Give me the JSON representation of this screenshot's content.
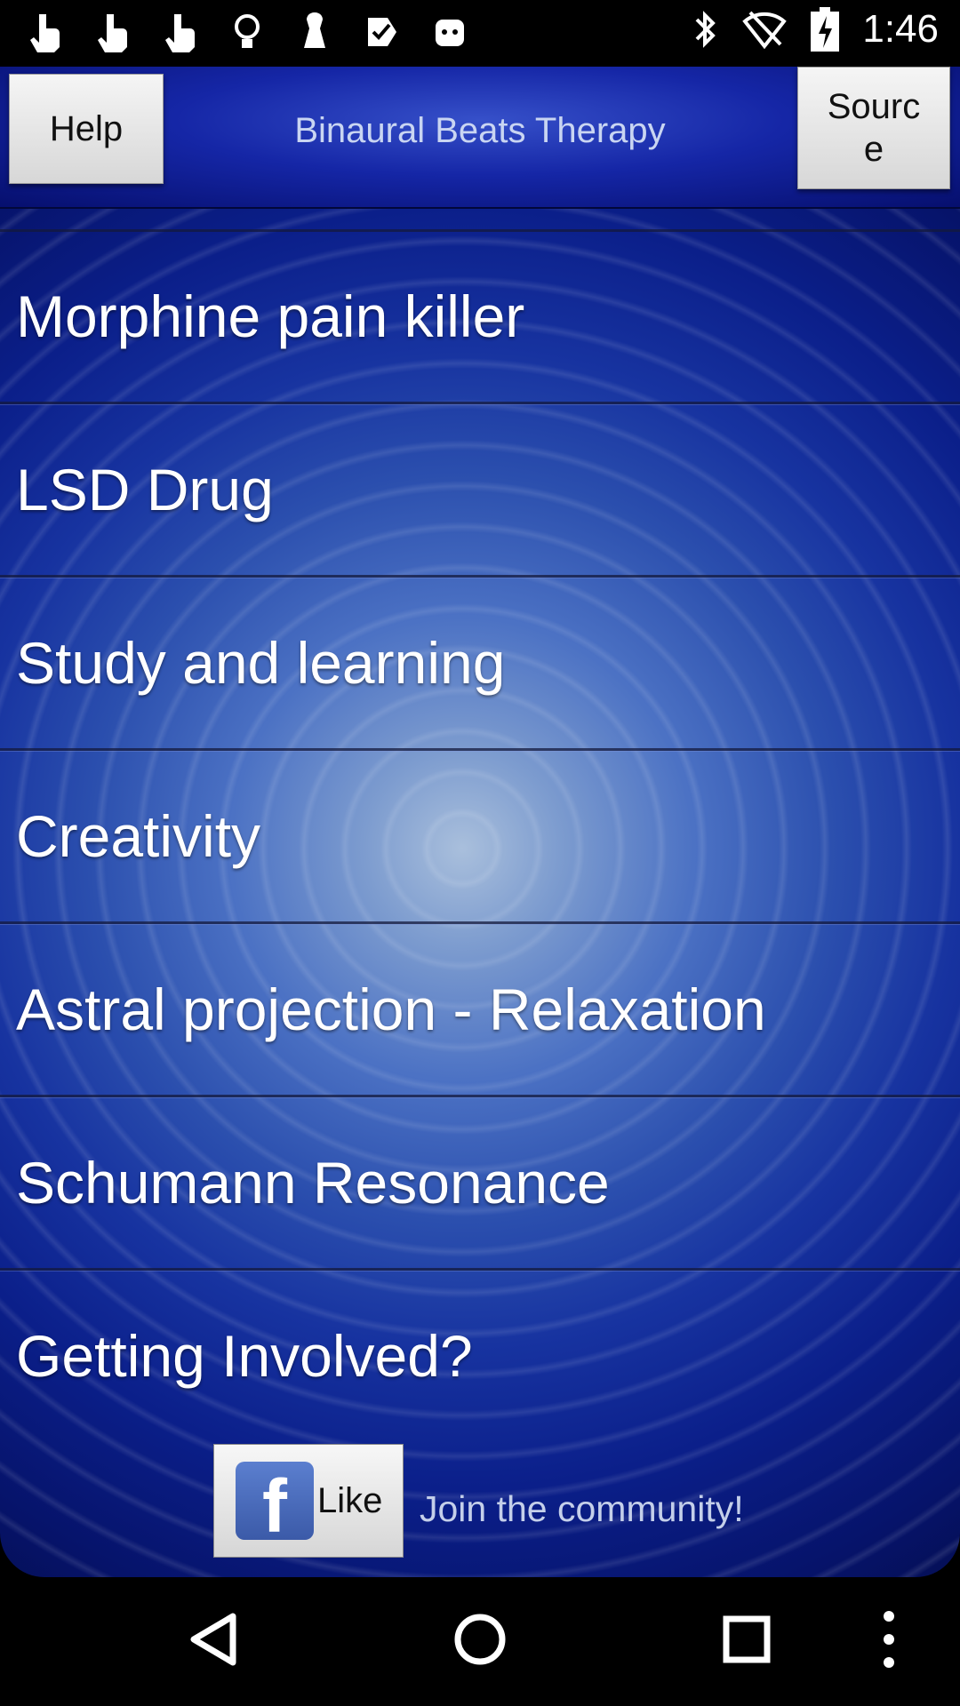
{
  "status_bar": {
    "left_icons": [
      "hand-pointer-icon",
      "hand-pointer-icon",
      "hand-pointer-icon",
      "lightbulb-icon",
      "pin-icon",
      "check-tag-icon",
      "android-icon"
    ],
    "right_icons": [
      "bluetooth-icon",
      "wifi-off-icon",
      "battery-charging-icon"
    ],
    "time": "1:46"
  },
  "header": {
    "help_label": "Help",
    "title": "Binaural Beats Therapy",
    "source_label_line1": "Sourc",
    "source_label_line2": "e"
  },
  "list": {
    "items": [
      {
        "label": "Morphine pain killer"
      },
      {
        "label": "LSD Drug"
      },
      {
        "label": "Study and learning"
      },
      {
        "label": "Creativity"
      },
      {
        "label": "Astral projection - Relaxation"
      },
      {
        "label": "Schumann Resonance"
      },
      {
        "label": "Getting Involved?"
      }
    ]
  },
  "facebook": {
    "like_label": "Like",
    "community_text": "Join the community!"
  },
  "navbar": {
    "icons": [
      "back-icon",
      "home-icon",
      "recents-icon",
      "more-icon"
    ]
  },
  "colors": {
    "header_bg": "#1526a6",
    "list_text": "#ffffff",
    "title_text": "#c9d5f2"
  }
}
